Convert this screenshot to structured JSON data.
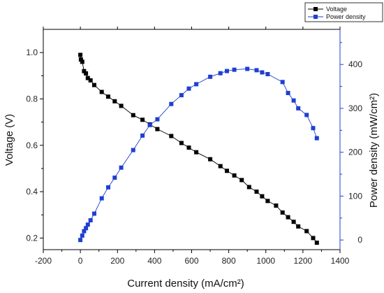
{
  "chart_data": {
    "type": "line",
    "xlabel": "Current density (mA/cm²)",
    "ylabel_left": "Voltage (V)",
    "ylabel_right": "Power density  (mW/cm²)",
    "xlim": [
      -200,
      1400
    ],
    "ylim_left": [
      0.15,
      1.1
    ],
    "ylim_right": [
      -22,
      480
    ],
    "x_ticks": [
      -200,
      0,
      200,
      400,
      600,
      800,
      1000,
      1200,
      1400
    ],
    "x_tick_labels": [
      "-200",
      "0",
      "200",
      "400",
      "600",
      "800",
      "1000",
      "1200",
      "1400"
    ],
    "y_left_ticks": [
      0.2,
      0.4,
      0.6,
      0.8,
      1.0
    ],
    "y_left_tick_labels": [
      "0.2",
      "0.4",
      "0.6",
      "0.8",
      "1.0"
    ],
    "y_right_ticks": [
      0,
      100,
      200,
      300,
      400
    ],
    "y_right_tick_labels": [
      "0",
      "100",
      "200",
      "300",
      "400"
    ],
    "grid": false,
    "legend_position": "top-right",
    "colors": {
      "voltage": "#000000",
      "power": "#1f3fd1",
      "right_axis": "#1f3fd1"
    },
    "series": [
      {
        "name": "Voltage",
        "axis": "left",
        "marker": "square",
        "x": [
          0,
          3,
          10,
          20,
          30,
          40,
          55,
          75,
          115,
          150,
          185,
          220,
          285,
          335,
          375,
          415,
          490,
          545,
          585,
          625,
          700,
          755,
          790,
          830,
          870,
          910,
          950,
          980,
          1010,
          1055,
          1090,
          1120,
          1150,
          1175,
          1220,
          1255,
          1275
        ],
        "y": [
          0.99,
          0.97,
          0.96,
          0.92,
          0.91,
          0.89,
          0.88,
          0.86,
          0.83,
          0.81,
          0.79,
          0.77,
          0.73,
          0.71,
          0.69,
          0.67,
          0.64,
          0.61,
          0.59,
          0.57,
          0.54,
          0.51,
          0.49,
          0.47,
          0.45,
          0.42,
          0.4,
          0.38,
          0.36,
          0.34,
          0.31,
          0.29,
          0.27,
          0.25,
          0.23,
          0.2,
          0.18
        ]
      },
      {
        "name": "Power density",
        "axis": "right",
        "marker": "square",
        "x": [
          0,
          10,
          20,
          30,
          40,
          55,
          75,
          115,
          150,
          185,
          220,
          285,
          335,
          375,
          415,
          490,
          545,
          585,
          625,
          700,
          755,
          790,
          830,
          900,
          950,
          980,
          1010,
          1090,
          1120,
          1150,
          1175,
          1220,
          1255,
          1275
        ],
        "y": [
          0,
          10,
          20,
          27,
          35,
          45,
          60,
          95,
          120,
          142,
          165,
          205,
          238,
          262,
          275,
          310,
          330,
          345,
          355,
          372,
          380,
          385,
          388,
          390,
          387,
          382,
          378,
          360,
          335,
          318,
          300,
          285,
          255,
          232
        ]
      }
    ]
  }
}
